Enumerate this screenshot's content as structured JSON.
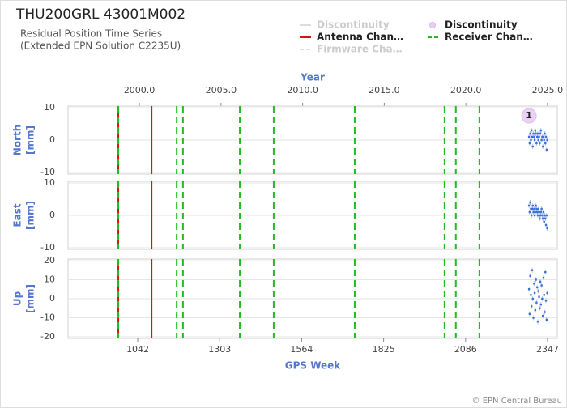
{
  "chart_data": {
    "type": "scatter",
    "title": "THU200GRL 43001M002",
    "subtitle": [
      "Residual Position Time Series",
      "(Extended EPN Solution C2235U)"
    ],
    "footer": "© EPN Central Bureau",
    "xlabel": "GPS Week",
    "xlim": [
      820,
      2378
    ],
    "xticks": [
      1042,
      1303,
      1564,
      1825,
      2086,
      2347
    ],
    "x2label": "Year",
    "x2lim": [
      1995.63,
      2025.6
    ],
    "x2ticks": [
      {
        "value": 2000,
        "label": "2000.0"
      },
      {
        "value": 2005,
        "label": "2005.0"
      },
      {
        "value": 2010,
        "label": "2010.0"
      },
      {
        "value": 2015,
        "label": "2015.0"
      },
      {
        "value": 2020,
        "label": "2020.0"
      },
      {
        "value": 2025,
        "label": "2025.0"
      }
    ],
    "grid": true,
    "point_color": "#3d6fd8",
    "legend": [
      {
        "label": "Discontinuity",
        "color": "#dddddd",
        "style": "line"
      },
      {
        "label": "Antenna Chan…",
        "color": "#dd1111",
        "style": "line",
        "weeks": [
          980,
          1086
        ]
      },
      {
        "label": "Firmware Cha…",
        "color": "#dddddd",
        "style": "dashed"
      },
      {
        "label": "Discontinuity",
        "color": "#e8cdf5",
        "style": "circle",
        "markers": [
          {
            "week": 2288,
            "label": "1"
          }
        ]
      },
      {
        "label": "Receiver Chan…",
        "color": "#22bb22",
        "style": "dashed",
        "weeks": [
          980,
          1166,
          1186,
          1367,
          1475,
          1733,
          2019,
          2055,
          2130
        ]
      }
    ],
    "x": [
      2288,
      2290,
      2292,
      2294,
      2296,
      2298,
      2300,
      2302,
      2304,
      2306,
      2308,
      2310,
      2312,
      2314,
      2316,
      2318,
      2320,
      2322,
      2324,
      2326,
      2328,
      2330,
      2332,
      2334,
      2336,
      2338,
      2340,
      2342,
      2344,
      2346
    ],
    "panels": [
      {
        "ylabel": [
          "North",
          "[mm]"
        ],
        "ylim": [
          -10,
          10
        ],
        "yticks": [
          -10,
          0,
          10
        ],
        "values": [
          1,
          -1,
          2,
          0,
          3,
          1,
          -2,
          2,
          1,
          0,
          3,
          2,
          -1,
          1,
          2,
          0,
          1,
          -1,
          2,
          3,
          0,
          1,
          -2,
          1,
          0,
          2,
          -1,
          1,
          -3,
          0
        ]
      },
      {
        "ylabel": [
          "East",
          "[mm]"
        ],
        "ylim": [
          -10,
          10
        ],
        "yticks": [
          -10,
          0,
          10
        ],
        "values": [
          3,
          1,
          4,
          2,
          0,
          2,
          3,
          1,
          2,
          0,
          1,
          3,
          2,
          1,
          0,
          2,
          1,
          -1,
          0,
          1,
          2,
          0,
          -1,
          1,
          -2,
          0,
          -1,
          -3,
          0,
          -4
        ]
      },
      {
        "ylabel": [
          "Up",
          "[mm]"
        ],
        "ylim": [
          -20,
          20
        ],
        "yticks": [
          -20,
          -10,
          0,
          10,
          20
        ],
        "values": [
          5,
          -8,
          12,
          2,
          -4,
          15,
          0,
          -10,
          8,
          3,
          -6,
          10,
          -2,
          6,
          -12,
          4,
          1,
          -5,
          9,
          -3,
          7,
          0,
          -9,
          11,
          2,
          -7,
          14,
          -1,
          -11,
          3
        ]
      }
    ]
  }
}
